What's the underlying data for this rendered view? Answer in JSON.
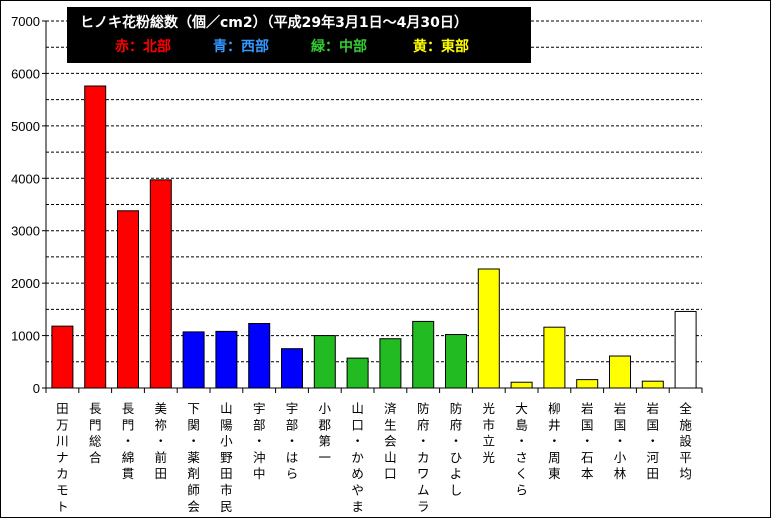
{
  "chart_data": {
    "type": "bar",
    "title": "ヒノキ花粉総数（個／cm2）（平成29年3月1日～4月30日）",
    "legend": [
      {
        "label": "赤：北部",
        "color": "#ff0000"
      },
      {
        "label": "青：西部",
        "color": "#3399ff"
      },
      {
        "label": "緑：中部",
        "color": "#33cc33"
      },
      {
        "label": "黄：東部",
        "color": "#ffff00"
      }
    ],
    "ylim": [
      0,
      7000
    ],
    "yticks": [
      "0",
      "1000",
      "2000",
      "3000",
      "4000",
      "5000",
      "6000",
      "7000"
    ],
    "grid": true,
    "categories": [
      "田万川ナカモト",
      "長門総合",
      "長門・綿貫",
      "美祢・前田",
      "下関・薬剤師会",
      "山陽小野田市民",
      "宇部・沖中",
      "宇部・はら",
      "小郡第一",
      "山口・かめやま",
      "済生会山口",
      "防府・カワムラ",
      "防府・ひよし",
      "光市立光",
      "大島・さくら",
      "柳井・周東",
      "岩国・石本",
      "岩国・小林",
      "岩国・河田",
      "全施設平均"
    ],
    "values": [
      1180,
      5760,
      3380,
      3970,
      1070,
      1080,
      1230,
      750,
      1000,
      570,
      940,
      1270,
      1020,
      2270,
      110,
      1160,
      160,
      610,
      130,
      1460
    ],
    "colors": [
      "#ff0000",
      "#ff0000",
      "#ff0000",
      "#ff0000",
      "#0000ff",
      "#0000ff",
      "#0000ff",
      "#0000ff",
      "#22bb22",
      "#22bb22",
      "#22bb22",
      "#22bb22",
      "#22bb22",
      "#ffff00",
      "#ffff00",
      "#ffff00",
      "#ffff00",
      "#ffff00",
      "#ffff00",
      "#ffffff"
    ]
  }
}
